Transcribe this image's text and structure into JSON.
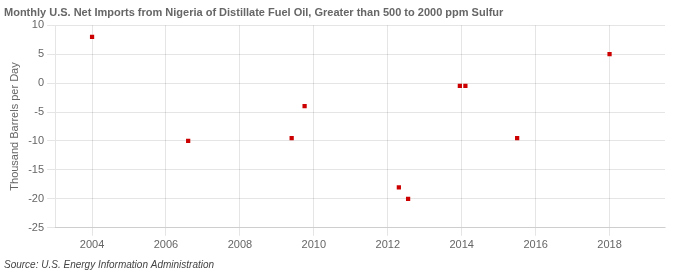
{
  "chart_data": {
    "type": "scatter",
    "title": "Monthly U.S. Net Imports from Nigeria of Distillate Fuel Oil, Greater than 500 to 2000 ppm Sulfur",
    "ylabel": "Thousand Barrels per Day",
    "annotations": [
      "Source: U.S. Energy Information Administration"
    ],
    "x": [
      2004.0,
      2006.6,
      2009.4,
      2009.75,
      2012.3,
      2012.55,
      2013.95,
      2014.1,
      2015.5,
      2018.0
    ],
    "values": [
      8.0,
      -10.0,
      -9.5,
      -4.0,
      -18.0,
      -20.0,
      -0.5,
      -0.5,
      -9.5,
      5.0
    ],
    "color": "#cc0000",
    "marker": "square",
    "xlim": [
      2003.0,
      2019.5
    ],
    "ylim": [
      -25,
      10
    ],
    "xticks": [
      2004,
      2006,
      2008,
      2010,
      2012,
      2014,
      2016,
      2018
    ],
    "yticks": [
      -25,
      -20,
      -15,
      -10,
      -5,
      0,
      5,
      10
    ],
    "grid": true
  }
}
